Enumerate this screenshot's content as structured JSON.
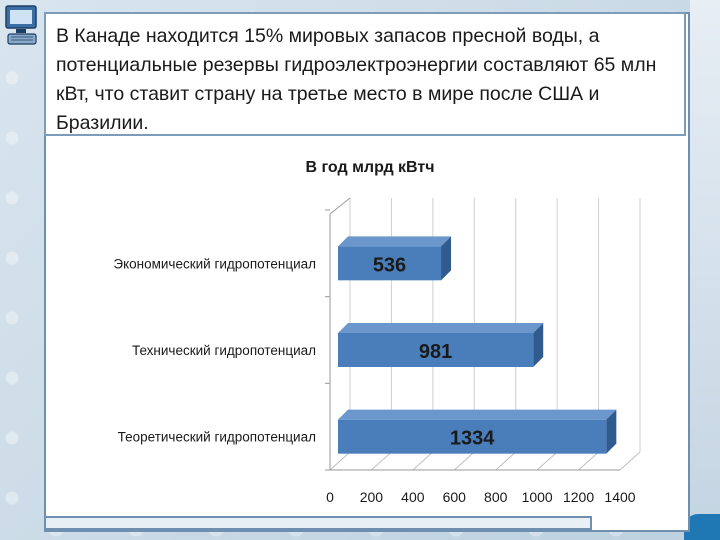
{
  "header": {
    "text": "В Канаде находится 15% мировых запасов пресной воды, а потенциальные резервы гидроэлектроэнергии составляют 65 млн кВт, что ставит страну на третье место в мире после США и Бразилии."
  },
  "colors": {
    "bar": "#4a7ebb",
    "bar_top": "#6b97cd",
    "bar_side": "#2f5b8e",
    "frame": "#6f8fb0",
    "corner": "#1f77b4"
  },
  "icons": {
    "logo": "computer-icon"
  },
  "chart_data": {
    "type": "bar",
    "orientation": "horizontal",
    "title": "В год млрд кВтч",
    "categories": [
      "Экономический гидропотенциал",
      "Технический гидропотенциал",
      "Теоретический гидропотенциал"
    ],
    "values": [
      536,
      981,
      1334
    ],
    "data_labels": [
      "536",
      "981",
      "1334"
    ],
    "xlim": [
      0,
      1400
    ],
    "x_ticks": [
      "0",
      "200",
      "400",
      "600",
      "800",
      "1000",
      "1200",
      "1400"
    ],
    "grid": true,
    "legend": "none",
    "style": "3d"
  }
}
